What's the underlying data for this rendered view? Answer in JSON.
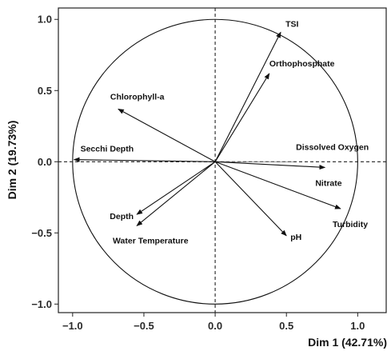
{
  "chart_data": {
    "type": "scatter",
    "subtype": "pca-variable-correlation-circle",
    "xlabel": "Dim 1 (42.71%)",
    "ylabel": "Dim 2 (19.73%)",
    "xlim": [
      -1.1,
      1.2
    ],
    "ylim": [
      -1.06,
      1.08
    ],
    "x_ticks": [
      -1.0,
      -0.5,
      0.0,
      0.5,
      1.0
    ],
    "y_ticks": [
      -1.0,
      -0.5,
      0.0,
      0.5,
      1.0
    ],
    "x_tick_labels": [
      "−1.0",
      "−0.5",
      "0.0",
      "0.5",
      "1.0"
    ],
    "y_tick_labels": [
      "−1.0",
      "−0.5",
      "0.0",
      "0.5",
      "1.0"
    ],
    "unit_circle": true,
    "zero_lines": "dashed",
    "grid": false,
    "variables": [
      {
        "name": "TSI",
        "x": 0.46,
        "y": 0.91
      },
      {
        "name": "Orthophosphate",
        "x": 0.38,
        "y": 0.62
      },
      {
        "name": "Chlorophyll-a",
        "x": -0.68,
        "y": 0.37
      },
      {
        "name": "Secchi Depth",
        "x": -0.99,
        "y": 0.015
      },
      {
        "name": "Dissolved Oxygen",
        "x": 0.55,
        "y": 0.0
      },
      {
        "name": "Nitrate",
        "x": 0.77,
        "y": -0.04
      },
      {
        "name": "Turbidity",
        "x": 0.88,
        "y": -0.33
      },
      {
        "name": "pH",
        "x": 0.5,
        "y": -0.52
      },
      {
        "name": "Depth",
        "x": -0.55,
        "y": -0.37
      },
      {
        "name": "Water Temperature",
        "x": -0.55,
        "y": -0.45
      }
    ]
  }
}
